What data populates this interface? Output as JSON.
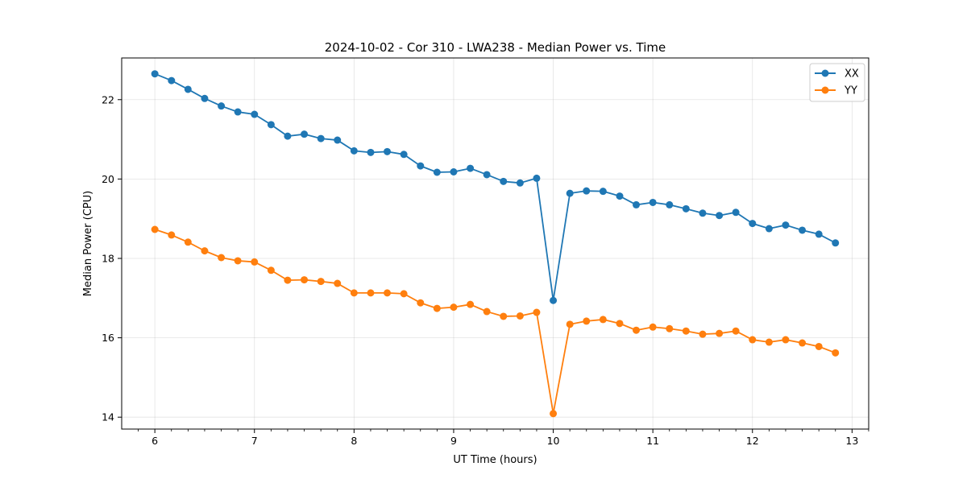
{
  "chart_data": {
    "type": "line",
    "title": "2024-10-02 - Cor 310 - LWA238 - Median Power vs. Time",
    "xlabel": "UT Time (hours)",
    "ylabel": "Median Power (CPU)",
    "xlim": [
      5.667,
      13.167
    ],
    "ylim": [
      13.7,
      23.05
    ],
    "xticks": [
      "6",
      "7",
      "8",
      "9",
      "10",
      "11",
      "12",
      "13"
    ],
    "yticks": [
      "14",
      "16",
      "18",
      "20",
      "22"
    ],
    "grid": true,
    "legend_position": "top-right",
    "x": [
      6.0,
      6.167,
      6.333,
      6.5,
      6.667,
      6.833,
      7.0,
      7.167,
      7.333,
      7.5,
      7.667,
      7.833,
      8.0,
      8.167,
      8.333,
      8.5,
      8.667,
      8.833,
      9.0,
      9.167,
      9.333,
      9.5,
      9.667,
      9.833,
      10.0,
      10.167,
      10.333,
      10.5,
      10.667,
      10.833,
      11.0,
      11.167,
      11.333,
      11.5,
      11.667,
      11.833,
      12.0,
      12.167,
      12.333,
      12.5,
      12.667,
      12.833
    ],
    "series": [
      {
        "name": "XX",
        "color": "#1f77b4",
        "values": [
          22.65,
          22.48,
          22.26,
          22.03,
          21.84,
          21.69,
          21.63,
          21.37,
          21.08,
          21.13,
          21.02,
          20.98,
          20.71,
          20.67,
          20.69,
          20.62,
          20.33,
          20.17,
          20.18,
          20.27,
          20.11,
          19.94,
          19.9,
          20.02,
          16.94,
          19.64,
          19.7,
          19.69,
          19.57,
          19.35,
          19.41,
          19.35,
          19.25,
          19.14,
          19.08,
          19.16,
          18.88,
          18.75,
          18.84,
          18.71,
          18.61,
          18.39
        ]
      },
      {
        "name": "YY",
        "color": "#ff7f0e",
        "values": [
          18.73,
          18.59,
          18.41,
          18.19,
          18.02,
          17.94,
          17.91,
          17.7,
          17.45,
          17.46,
          17.42,
          17.37,
          17.13,
          17.13,
          17.13,
          17.11,
          16.88,
          16.74,
          16.77,
          16.84,
          16.66,
          16.54,
          16.55,
          16.64,
          14.09,
          16.34,
          16.42,
          16.46,
          16.36,
          16.19,
          16.27,
          16.23,
          16.17,
          16.09,
          16.11,
          16.17,
          15.95,
          15.89,
          15.95,
          15.87,
          15.78,
          15.62
        ]
      }
    ]
  }
}
